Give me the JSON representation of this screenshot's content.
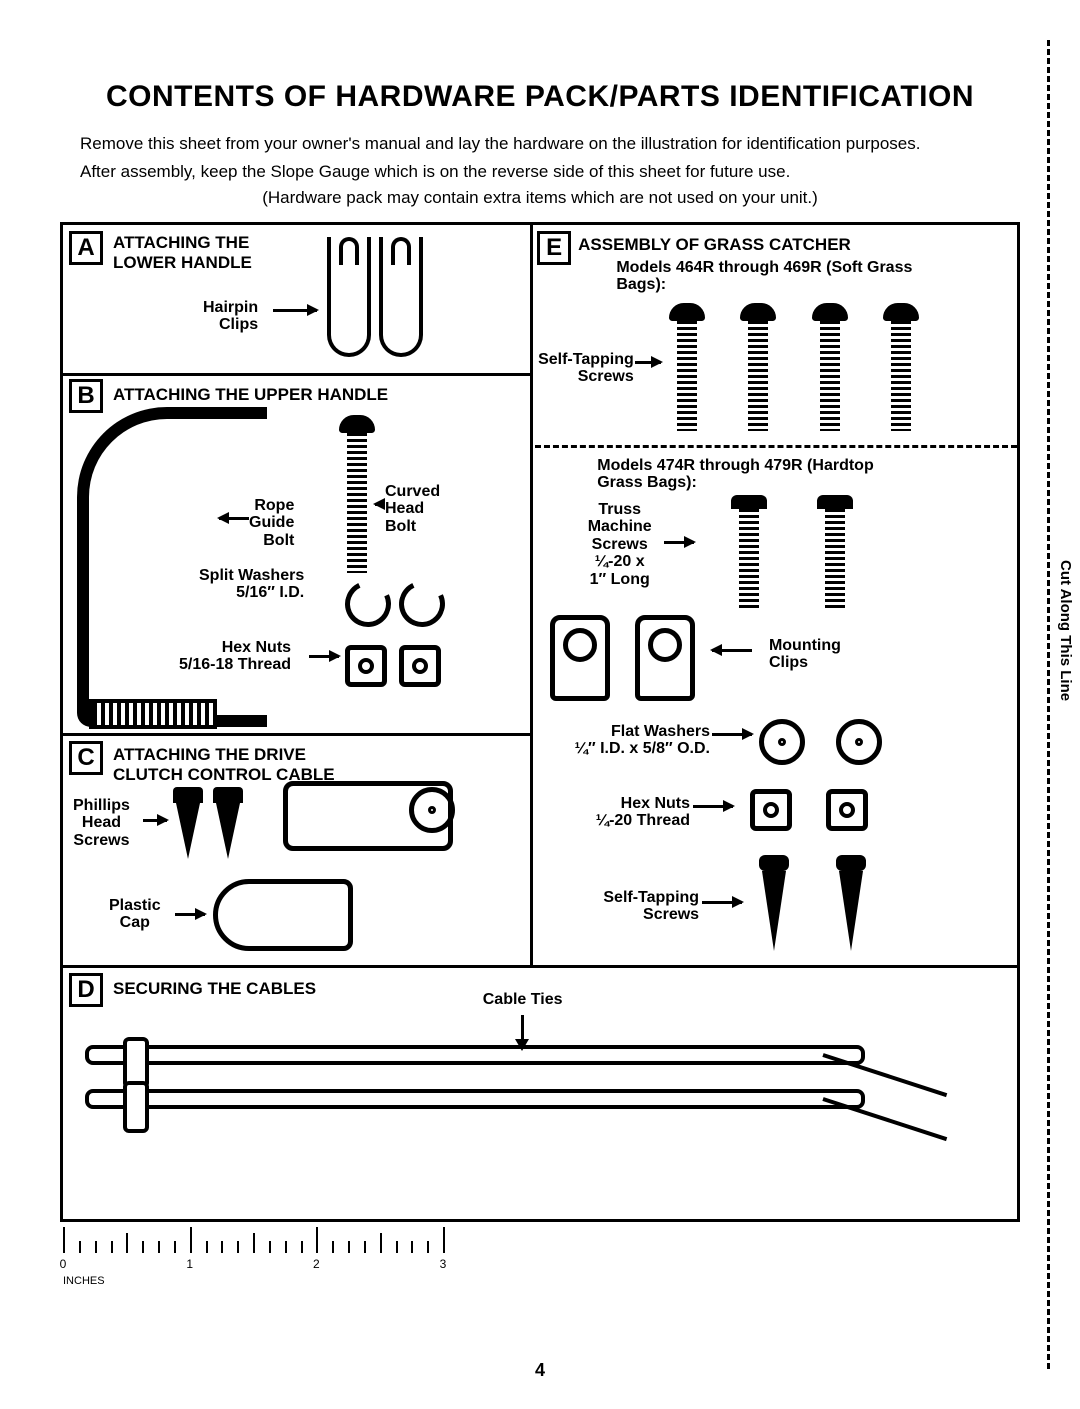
{
  "title": "CONTENTS OF HARDWARE PACK/PARTS IDENTIFICATION",
  "intro_line1": "Remove this sheet from your owner's manual and lay the hardware on the illustration for identification purposes.",
  "intro_line2": "After assembly, keep the Slope Gauge which is on the reverse side of this sheet for future use.",
  "intro_line3": "(Hardware pack may contain extra items which are not used on your unit.)",
  "cut_label": "Cut Along This Line",
  "page_number": "4",
  "ruler": {
    "caption": "INCHES",
    "marks": [
      "0",
      "1",
      "2",
      "3"
    ]
  },
  "sections": {
    "A": {
      "letter": "A",
      "title": "ATTACHING THE LOWER HANDLE",
      "labels": {
        "hairpin": "Hairpin\nClips"
      }
    },
    "B": {
      "letter": "B",
      "title": "ATTACHING THE UPPER HANDLE",
      "labels": {
        "rope": "Rope\nGuide\nBolt",
        "curved": "Curved\nHead\nBolt",
        "split": "Split Washers\n5/16″ I.D.",
        "hex": "Hex Nuts\n5/16-18 Thread"
      }
    },
    "C": {
      "letter": "C",
      "title": "ATTACHING THE DRIVE CLUTCH CONTROL CABLE",
      "labels": {
        "phillips": "Phillips\nHead\nScrews",
        "cap": "Plastic\nCap"
      }
    },
    "D": {
      "letter": "D",
      "title": "SECURING THE CABLES",
      "labels": {
        "ties": "Cable Ties"
      }
    },
    "E": {
      "letter": "E",
      "title": "ASSEMBLY OF GRASS CATCHER",
      "sub1": "Models 464R through 469R (Soft Grass Bags):",
      "sub2": "Models 474R through 479R (Hardtop Grass Bags):",
      "labels": {
        "selftap1": "Self-Tapping\nScrews",
        "truss": "Truss\nMachine\nScrews\n¼-20 x\n1″ Long",
        "mount": "Mounting\nClips",
        "flat": "Flat Washers\n¼″ I.D. x 5/8″ O.D.",
        "hex": "Hex Nuts\n¼-20 Thread",
        "selftap2": "Self-Tapping\nScrews"
      }
    }
  },
  "style": {
    "page_bg": "#ffffff",
    "ink": "#000000",
    "title_fontsize": 30,
    "body_fontsize": 17,
    "label_fontsize": 16,
    "border_width": 3
  }
}
